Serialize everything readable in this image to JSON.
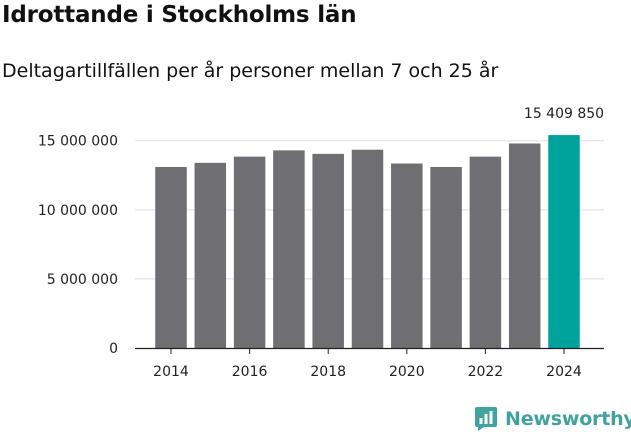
{
  "title": "Idrottande i Stockholms län",
  "subtitle": "Deltagartillfällen per år personer mellan 7 och 25 år",
  "brand": {
    "name": "Newsworthy",
    "icon": "newsworthy-logo-icon"
  },
  "colors": {
    "bar": "#6e6e73",
    "highlight": "#00a39b",
    "grid": "#dddddd",
    "axis": "#222222",
    "brand": "#40a3a0"
  },
  "chart_data": {
    "type": "bar",
    "title": "Idrottande i Stockholms län",
    "subtitle": "Deltagartillfällen per år personer mellan 7 och 25 år",
    "xlabel": "",
    "ylabel": "",
    "categories": [
      "2014",
      "2015",
      "2016",
      "2017",
      "2018",
      "2019",
      "2020",
      "2021",
      "2022",
      "2023",
      "2024"
    ],
    "values": [
      13100000,
      13400000,
      13850000,
      14300000,
      14050000,
      14350000,
      13350000,
      13100000,
      13850000,
      14800000,
      15409850
    ],
    "highlight_index": 10,
    "highlight_label": "15 409 850",
    "ylim": [
      0,
      16500000
    ],
    "y_ticks": [
      {
        "value": 0,
        "label": "0"
      },
      {
        "value": 5000000,
        "label": "5 000 000"
      },
      {
        "value": 10000000,
        "label": "10 000 000"
      },
      {
        "value": 15000000,
        "label": "15 000 000"
      }
    ],
    "x_tick_labels": [
      "2014",
      "2016",
      "2018",
      "2020",
      "2022",
      "2024"
    ],
    "grid": true,
    "legend": "none"
  }
}
